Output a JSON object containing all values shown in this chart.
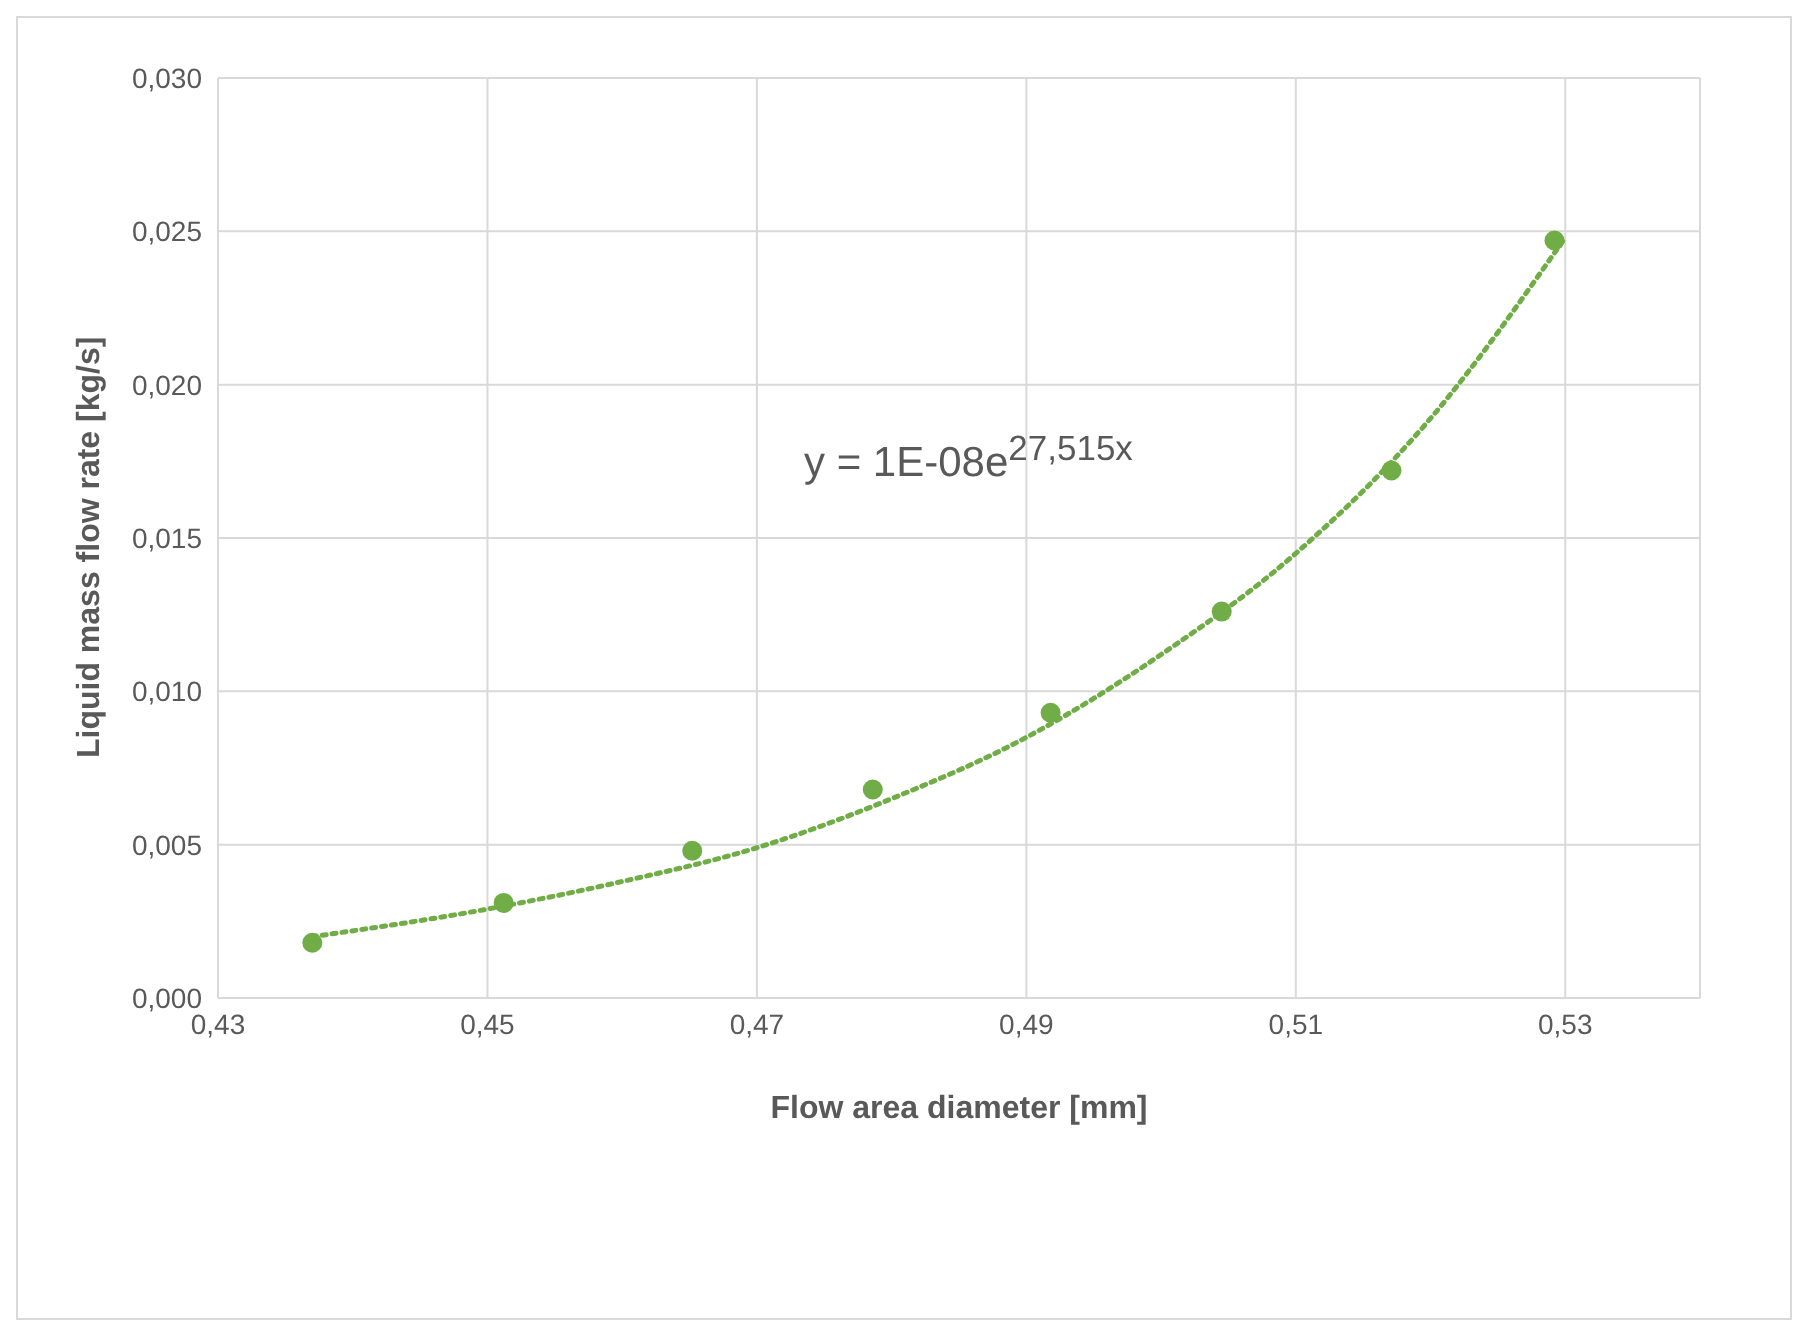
{
  "chart_data": {
    "type": "scatter",
    "xlabel": "Flow area diameter [mm]",
    "ylabel": "Liquid mass flow rate [kg/s]",
    "xlim": [
      0.43,
      0.54
    ],
    "xticks": [
      {
        "value": 0.43,
        "label": "0,43"
      },
      {
        "value": 0.45,
        "label": "0,45"
      },
      {
        "value": 0.47,
        "label": "0,47"
      },
      {
        "value": 0.49,
        "label": "0,49"
      },
      {
        "value": 0.51,
        "label": "0,51"
      },
      {
        "value": 0.53,
        "label": "0,53"
      }
    ],
    "ylim": [
      0,
      0.03
    ],
    "yticks": [
      {
        "value": 0,
        "label": "0,000"
      },
      {
        "value": 0.005,
        "label": "0,005"
      },
      {
        "value": 0.01,
        "label": "0,010"
      },
      {
        "value": 0.015,
        "label": "0,015"
      },
      {
        "value": 0.02,
        "label": "0,020"
      },
      {
        "value": 0.025,
        "label": "0,025"
      },
      {
        "value": 0.03,
        "label": "0,030"
      }
    ],
    "grid": true,
    "legend": false,
    "series": [
      {
        "color": "#70ad47",
        "marker": "circle",
        "x": [
          0.437,
          0.4512,
          0.4652,
          0.4786,
          0.4918,
          0.5045,
          0.5171,
          0.5292
        ],
        "values": [
          0.0018,
          0.0031,
          0.0048,
          0.0068,
          0.0093,
          0.0126,
          0.0172,
          0.0247
        ]
      },
      {
        "type": "line",
        "color": "#70ad47",
        "marker": "none",
        "line_style": "dotted",
        "x": [
          0.437,
          0.45,
          0.46,
          0.47,
          0.48,
          0.49,
          0.5,
          0.51,
          0.52,
          0.53
        ],
        "values": [
          0.002,
          0.0029,
          0.0038,
          0.0049,
          0.0065,
          0.0085,
          0.0112,
          0.0145,
          0.0189,
          0.0248
        ]
      }
    ],
    "annotations": [
      "y = 1E-08e$^{27,515x}$"
    ]
  }
}
